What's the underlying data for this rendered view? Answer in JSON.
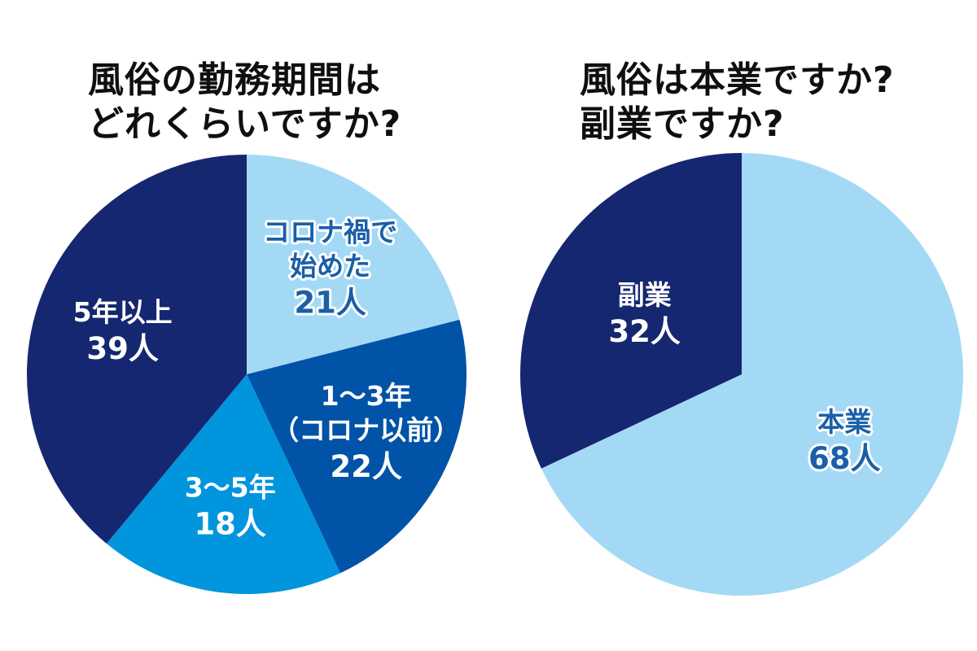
{
  "chart_data": [
    {
      "type": "pie",
      "title": [
        "風俗の勤務期間は",
        "どれくらいですか?"
      ],
      "unit": "人",
      "slices": [
        {
          "label": [
            "コロナ禍で",
            "始めた"
          ],
          "value": 21,
          "color": "#a4d9f5",
          "text_color": "#1a5fa8",
          "outline": "#ffffff"
        },
        {
          "label": [
            "1～3年",
            "（コロナ以前）"
          ],
          "value": 22,
          "color": "#0053a6",
          "text_color": "#ffffff",
          "outline": "none"
        },
        {
          "label": [
            "3～5年"
          ],
          "value": 18,
          "color": "#0095dc",
          "text_color": "#ffffff",
          "outline": "none"
        },
        {
          "label": [
            "5年以上"
          ],
          "value": 39,
          "color": "#152770",
          "text_color": "#ffffff",
          "outline": "none"
        }
      ]
    },
    {
      "type": "pie",
      "title": [
        "風俗は本業ですか?",
        "副業ですか?"
      ],
      "unit": "人",
      "slices": [
        {
          "label": [
            "本業"
          ],
          "value": 68,
          "color": "#a4d9f5",
          "text_color": "#1a5fa8",
          "outline": "#ffffff"
        },
        {
          "label": [
            "副業"
          ],
          "value": 32,
          "color": "#152770",
          "text_color": "#ffffff",
          "outline": "none"
        }
      ]
    }
  ]
}
